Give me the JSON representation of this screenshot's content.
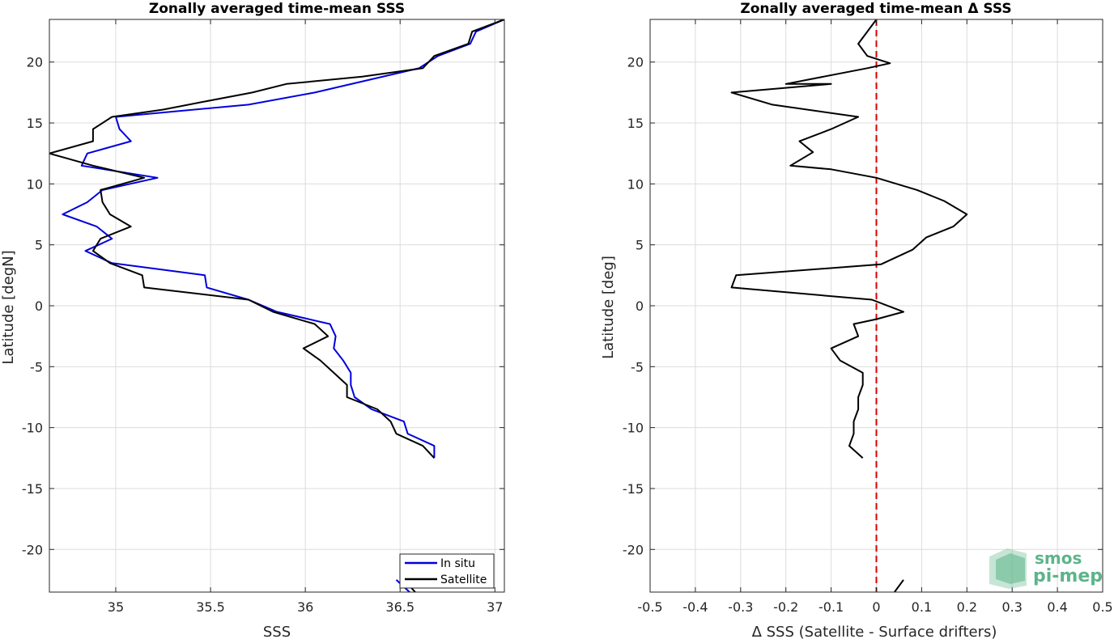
{
  "chart_data": [
    {
      "type": "line",
      "title": "Zonally averaged time-mean SSS",
      "xlabel": "SSS",
      "ylabel": "Latitude [degN]",
      "xlim": [
        34.65,
        37.05
      ],
      "ylim": [
        -23.5,
        23.5
      ],
      "xticks": [
        35,
        35.5,
        36,
        36.5,
        37
      ],
      "xticklabels": [
        "35",
        "35.5",
        "36",
        "36.5",
        "37"
      ],
      "yticks": [
        -20,
        -15,
        -10,
        -5,
        0,
        5,
        10,
        15,
        20
      ],
      "yticklabels": [
        "-20",
        "-15",
        "-10",
        "-5",
        "0",
        "5",
        "10",
        "15",
        "20"
      ],
      "grid": true,
      "legend_position": "bottom-right",
      "series": [
        {
          "name": "In situ",
          "color": "#0000dd",
          "segments": [
            [
              [
                37.05,
                23.5
              ],
              [
                36.9,
                22.5
              ],
              [
                36.87,
                21.5
              ],
              [
                36.7,
                20.5
              ],
              [
                36.6,
                19.5
              ],
              [
                36.05,
                17.5
              ],
              [
                35.7,
                16.5
              ],
              [
                35,
                15.5
              ],
              [
                35.02,
                14.5
              ],
              [
                35.08,
                13.5
              ],
              [
                34.85,
                12.5
              ],
              [
                34.82,
                11.5
              ],
              [
                35.22,
                10.5
              ],
              [
                34.93,
                9.5
              ],
              [
                34.85,
                8.5
              ],
              [
                34.72,
                7.5
              ],
              [
                34.9,
                6.5
              ],
              [
                34.98,
                5.5
              ],
              [
                34.84,
                4.5
              ],
              [
                34.98,
                3.5
              ],
              [
                35.47,
                2.5
              ],
              [
                35.48,
                1.5
              ],
              [
                35.7,
                0.5
              ],
              [
                35.85,
                -0.5
              ],
              [
                36.13,
                -1.5
              ],
              [
                36.16,
                -2.5
              ],
              [
                36.15,
                -3.5
              ],
              [
                36.2,
                -4.5
              ],
              [
                36.24,
                -5.5
              ],
              [
                36.24,
                -6.5
              ],
              [
                36.26,
                -7.5
              ],
              [
                36.35,
                -8.5
              ],
              [
                36.52,
                -9.5
              ],
              [
                36.54,
                -10.5
              ],
              [
                36.68,
                -11.5
              ],
              [
                36.68,
                -12.5
              ]
            ],
            [
              [
                36.48,
                -22.5
              ],
              [
                36.55,
                -23.5
              ]
            ]
          ]
        },
        {
          "name": "Satellite",
          "color": "#000000",
          "segments": [
            [
              [
                37.05,
                23.5
              ],
              [
                36.88,
                22.5
              ],
              [
                36.86,
                21.5
              ],
              [
                36.68,
                20.5
              ],
              [
                36.62,
                19.5
              ],
              [
                36.3,
                18.8
              ],
              [
                35.9,
                18.2
              ],
              [
                35.72,
                17.5
              ],
              [
                35.45,
                16.7
              ],
              [
                35.25,
                16.1
              ],
              [
                34.98,
                15.5
              ],
              [
                34.88,
                14.5
              ],
              [
                34.88,
                13.5
              ],
              [
                34.65,
                12.5
              ],
              [
                34.88,
                11.5
              ],
              [
                35.15,
                10.5
              ],
              [
                34.92,
                9.5
              ],
              [
                34.93,
                8.5
              ],
              [
                34.97,
                7.5
              ],
              [
                35.08,
                6.5
              ],
              [
                34.92,
                5.5
              ],
              [
                34.88,
                4.5
              ],
              [
                34.97,
                3.5
              ],
              [
                35.14,
                2.5
              ],
              [
                35.15,
                1.5
              ],
              [
                35.7,
                0.5
              ],
              [
                35.83,
                -0.5
              ],
              [
                36.05,
                -1.5
              ],
              [
                36.12,
                -2.5
              ],
              [
                35.99,
                -3.5
              ],
              [
                36.08,
                -4.5
              ],
              [
                36.15,
                -5.5
              ],
              [
                36.22,
                -6.5
              ],
              [
                36.22,
                -7.5
              ],
              [
                36.38,
                -8.5
              ],
              [
                36.45,
                -9.5
              ],
              [
                36.48,
                -10.5
              ],
              [
                36.62,
                -11.5
              ],
              [
                36.68,
                -12.5
              ]
            ],
            [
              [
                36.52,
                -22.5
              ],
              [
                36.58,
                -23.5
              ]
            ]
          ]
        }
      ]
    },
    {
      "type": "line",
      "title": "Zonally averaged time-mean Δ SSS",
      "xlabel": "Δ SSS (Satellite - Surface drifters)",
      "ylabel": "Latitude [deg]",
      "xlim": [
        -0.5,
        0.5
      ],
      "ylim": [
        -23.5,
        23.5
      ],
      "xticks": [
        -0.5,
        -0.4,
        -0.3,
        -0.2,
        -0.1,
        0,
        0.1,
        0.2,
        0.3,
        0.4,
        0.5
      ],
      "xticklabels": [
        "-0.5",
        "-0.4",
        "-0.3",
        "-0.2",
        "-0.1",
        "0",
        "0.1",
        "0.2",
        "0.3",
        "0.4",
        "0.5"
      ],
      "yticks": [
        -20,
        -15,
        -10,
        -5,
        0,
        5,
        10,
        15,
        20
      ],
      "yticklabels": [
        "-20",
        "-15",
        "-10",
        "-5",
        "0",
        "5",
        "10",
        "15",
        "20"
      ],
      "grid": true,
      "reference_line": {
        "x": 0,
        "color": "#dd0000",
        "style": "dashed"
      },
      "series": [
        {
          "color": "#000000",
          "segments": [
            [
              [
                0,
                23.5
              ],
              [
                -0.02,
                22.5
              ],
              [
                -0.04,
                21.5
              ],
              [
                -0.02,
                20.5
              ],
              [
                0.03,
                19.9
              ],
              [
                -0.02,
                19.5
              ],
              [
                -0.2,
                18.2
              ],
              [
                -0.1,
                18.2
              ],
              [
                -0.32,
                17.5
              ],
              [
                -0.23,
                16.5
              ],
              [
                -0.04,
                15.5
              ],
              [
                -0.1,
                14.5
              ],
              [
                -0.17,
                13.5
              ],
              [
                -0.14,
                12.6
              ],
              [
                -0.19,
                11.5
              ],
              [
                -0.1,
                11.2
              ],
              [
                0,
                10.5
              ],
              [
                0.09,
                9.5
              ],
              [
                0.15,
                8.6
              ],
              [
                0.2,
                7.5
              ],
              [
                0.17,
                6.5
              ],
              [
                0.11,
                5.6
              ],
              [
                0.08,
                4.6
              ],
              [
                0.01,
                3.4
              ],
              [
                -0.31,
                2.5
              ],
              [
                -0.32,
                1.5
              ],
              [
                -0.01,
                0.5
              ],
              [
                0.06,
                -0.5
              ],
              [
                0,
                -1.1
              ],
              [
                -0.05,
                -1.5
              ],
              [
                -0.04,
                -2.5
              ],
              [
                -0.1,
                -3.5
              ],
              [
                -0.08,
                -4.5
              ],
              [
                -0.03,
                -5.5
              ],
              [
                -0.03,
                -6.5
              ],
              [
                -0.04,
                -7.5
              ],
              [
                -0.04,
                -8.5
              ],
              [
                -0.05,
                -9.5
              ],
              [
                -0.05,
                -10.5
              ],
              [
                -0.06,
                -11.5
              ],
              [
                -0.03,
                -12.5
              ]
            ],
            [
              [
                0.06,
                -22.5
              ],
              [
                0.04,
                -23.5
              ]
            ]
          ]
        }
      ]
    }
  ],
  "legend": {
    "items": [
      {
        "label": "In situ",
        "color": "#0000dd"
      },
      {
        "label": "Satellite",
        "color": "#000000"
      }
    ]
  },
  "logo": {
    "line1": "smos",
    "line2": "pi-mep",
    "color": "#5db48a"
  }
}
